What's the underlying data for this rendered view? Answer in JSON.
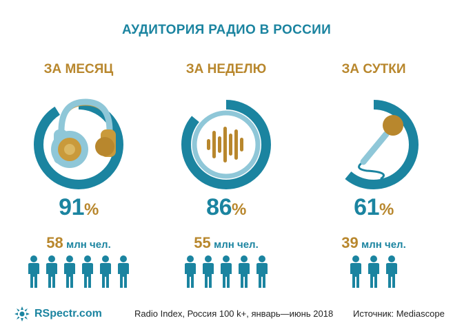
{
  "title": "АУДИТОРИЯ РАДИО В РОССИИ",
  "chart_data": {
    "type": "infographic",
    "title": "АУДИТОРИЯ РАДИО В РОССИИ",
    "categories": [
      "ЗА МЕСЯЦ",
      "ЗА НЕДЕЛЮ",
      "ЗА СУТКИ"
    ],
    "values": [
      91,
      86,
      61
    ],
    "unit": "%",
    "people_millions": [
      58,
      55,
      39
    ],
    "people_unit": "млн чел.",
    "people_icons": [
      6,
      5,
      3
    ]
  },
  "columns": [
    {
      "label": "ЗА МЕСЯЦ",
      "icon": "headphones-icon",
      "percent": "91",
      "percent_sign": "%",
      "people_num": "58",
      "people_unit": "млн чел."
    },
    {
      "label": "ЗА НЕДЕЛЮ",
      "icon": "sound-wave-icon",
      "percent": "86",
      "percent_sign": "%",
      "people_num": "55",
      "people_unit": "млн чел."
    },
    {
      "label": "ЗА СУТКИ",
      "icon": "microphone-icon",
      "percent": "61",
      "percent_sign": "%",
      "people_num": "39",
      "people_unit": "млн чел."
    }
  ],
  "footer": {
    "brand": "RSpectr.com",
    "note": "Radio Index, Россия 100 k+, январь—июнь 2018",
    "source": "Источник: Mediascope"
  },
  "colors": {
    "teal": "#1b84a0",
    "light_blue": "#8fc7d8",
    "gold": "#b8872d",
    "gold_light": "#c99a3b"
  }
}
